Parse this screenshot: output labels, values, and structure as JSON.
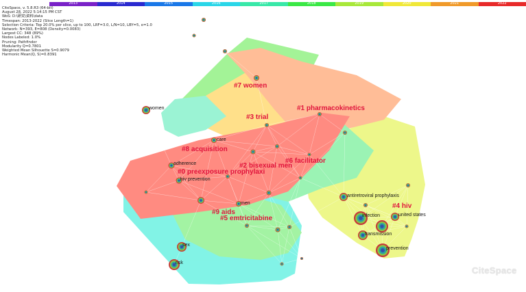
{
  "timeline": {
    "years": [
      "2013",
      "2014",
      "2015",
      "2016",
      "2017",
      "2018",
      "2019",
      "2020",
      "2021",
      "2022"
    ],
    "colors": [
      "#7a22c8",
      "#2a2ad0",
      "#1a78e8",
      "#2ad6e8",
      "#38e8a8",
      "#3ae846",
      "#a8e83a",
      "#f0e838",
      "#f09a2a",
      "#e82a2a"
    ]
  },
  "meta": [
    "CiteSpace, v. 5.8.R3 (64-bit)",
    "August 28, 2022 5:14:15 PM CST",
    "WoS: D:\\研究\\资料\\data",
    "Timespan: 2013-2022 (Slice Length=1)",
    "Selection Criteria: Top 20.0% per slice, up to 100, LRF=3.0, L/N=10, LBY=5, e=1.0",
    "Network: N=393, E=808 (Density=0.0083)",
    "Largest CC: 348 (89%)",
    "Nodes Labeled: 1.0%",
    "Pruning: Pathfinder",
    "Modularity Q=0.7801",
    "Weighted Mean Silhouette S=0.9079",
    "Harmonic Mean(Q, S)=0.8391"
  ],
  "clusters": [
    {
      "id": "#0 preexposure prophylaxi",
      "color": "#ff6b5e"
    },
    {
      "id": "#1 pharmacokinetics",
      "color": "#ffab7a"
    },
    {
      "id": "#2 bisexual men",
      "color": "#ff8a5a"
    },
    {
      "id": "#3 trial",
      "color": "#ffd86a"
    },
    {
      "id": "#4 hiv",
      "color": "#e9f56a"
    },
    {
      "id": "#5 emtricitabine",
      "color": "#8af08a"
    },
    {
      "id": "#6 facilitator",
      "color": "#7ff0a0"
    },
    {
      "id": "#7 women",
      "color": "#b9e87a"
    },
    {
      "id": "#8 acquisition",
      "color": "#ffa060"
    },
    {
      "id": "#9 aids",
      "color": "#5ff0e0"
    }
  ],
  "node_labels": [
    "women",
    "care",
    "adherence",
    "hiv prevention",
    "men",
    "antiretroviral prophylaxis",
    "infection",
    "united states",
    "transmission",
    "prevention",
    "sex",
    "risk"
  ],
  "logo": "CiteSpace"
}
